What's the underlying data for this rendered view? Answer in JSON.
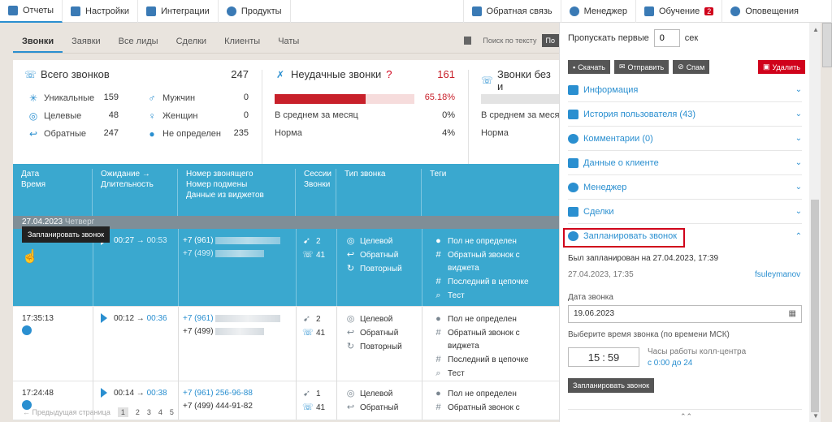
{
  "topbar": {
    "items": [
      {
        "label": "Отчеты",
        "icon": "reports-icon",
        "active": true
      },
      {
        "label": "Настройки",
        "icon": "settings-icon"
      },
      {
        "label": "Интеграции",
        "icon": "integrations-icon"
      },
      {
        "label": "Продукты",
        "icon": "products-icon"
      }
    ],
    "right": [
      {
        "label": "Обратная связь",
        "icon": "feedback-icon"
      },
      {
        "label": "Менеджер",
        "icon": "manager-icon"
      },
      {
        "label": "Обучение",
        "icon": "education-icon",
        "badge": "2"
      },
      {
        "label": "Оповещения",
        "icon": "bell-icon"
      }
    ]
  },
  "subtabs": [
    "Звонки",
    "Заявки",
    "Все лиды",
    "Сделки",
    "Клиенты",
    "Чаты"
  ],
  "search_label": "Поиск по тексту",
  "search_btn": "По",
  "stats": {
    "total": {
      "title": "Всего звонков",
      "value": "247"
    },
    "rows_left": [
      {
        "label": "Уникальные",
        "value": "159",
        "icon": "asterisk-icon"
      },
      {
        "label": "Целевые",
        "value": "48",
        "icon": "target-icon"
      },
      {
        "label": "Обратные",
        "value": "247",
        "icon": "callback-icon"
      }
    ],
    "rows_mid": [
      {
        "label": "Мужчин",
        "value": "0",
        "icon": "male-icon"
      },
      {
        "label": "Женщин",
        "value": "0",
        "icon": "female-icon"
      },
      {
        "label": "Не определен",
        "value": "235",
        "icon": "person-icon"
      }
    ],
    "failed": {
      "title": "Неудачные звонки",
      "value": "161",
      "percent_label": "65.18%",
      "percent": 65.18,
      "avg_label": "В среднем за месяц",
      "avg_value": "0%",
      "norm_label": "Норма",
      "norm_value": "4%"
    },
    "unanswered": {
      "title": "Звонки без и",
      "avg_label": "В среднем за месяц",
      "norm_label": "Норма"
    }
  },
  "table": {
    "headers": [
      [
        "Дата",
        "Время"
      ],
      [
        "Ожидание →",
        "Длительность"
      ],
      [
        "Номер звонящего",
        "Номер подмены",
        "Данные из виджетов"
      ],
      [
        "Сессии",
        "Звонки"
      ],
      [
        "Тип звонка"
      ],
      [
        "Теги"
      ]
    ],
    "date_band": {
      "date": "27.04.2023",
      "dow": "Четверг"
    },
    "tooltip": "Запланировать звонок",
    "rows": [
      {
        "time": "",
        "wait": "00:27",
        "dur": "00:53",
        "caller": "+7 (961)",
        "sub": "+7 (499)",
        "sessions": "2",
        "calls": "41",
        "types": [
          "Целевой",
          "Обратный",
          "Повторный"
        ],
        "tags": [
          "Пол не определен",
          "Обратный звонок с",
          "виджета",
          "Последний в цепочке",
          "Тест"
        ],
        "selected": true
      },
      {
        "time": "17:35:13",
        "wait": "00:12",
        "dur": "00:36",
        "caller": "+7 (961)",
        "sub": "+7 (499)",
        "sessions": "2",
        "calls": "41",
        "types": [
          "Целевой",
          "Обратный",
          "Повторный"
        ],
        "tags": [
          "Пол не определен",
          "Обратный звонок с",
          "виджета",
          "Последний в цепочке",
          "Тест"
        ],
        "selected": false
      },
      {
        "time": "17:24:48",
        "wait": "00:14",
        "dur": "00:38",
        "caller": "+7 (961) 256-96-88",
        "sub": "+7 (499) 444-91-82",
        "sessions": "1",
        "calls": "41",
        "types": [
          "Целевой",
          "Обратный"
        ],
        "tags": [
          "Пол не определен",
          "Обратный звонок с"
        ],
        "selected": false
      }
    ]
  },
  "pager": {
    "prev": "← Предыдущая страница",
    "pages": [
      "1",
      "2",
      "3",
      "4",
      "5"
    ],
    "current": "1"
  },
  "panel": {
    "skip_label": "Пропускать первые",
    "skip_value": "0",
    "skip_unit": "сек",
    "buttons": {
      "download": "Скачать",
      "send": "Отправить",
      "spam": "Спам",
      "delete": "Удалить"
    },
    "sections": [
      {
        "label": "Информация",
        "icon": "info-icon",
        "open": false
      },
      {
        "label": "История пользователя (43)",
        "icon": "history-icon",
        "open": false
      },
      {
        "label": "Комментарии (0)",
        "icon": "comment-icon",
        "open": false
      },
      {
        "label": "Данные о клиенте",
        "icon": "client-card-icon",
        "open": false
      },
      {
        "label": "Менеджер",
        "icon": "manager-icon",
        "open": false
      },
      {
        "label": "Сделки",
        "icon": "deals-icon",
        "open": false
      },
      {
        "label": "Запланировать звонок",
        "icon": "schedule-call-icon",
        "open": true
      }
    ],
    "scheduled_text": "Был запланирован на 27.04.2023, 17:39",
    "scheduled_at": "27.04.2023, 17:35",
    "scheduled_by": "fsuleymanov",
    "date_label": "Дата звонка",
    "date_value": "19.06.2023",
    "time_label": "Выберите время звонка (по времени МСК)",
    "time_h": "15",
    "time_m": "59",
    "hours_label": "Часы работы колл-центра",
    "hours_value": "с 0:00 до 24",
    "schedule_btn": "Запланировать звонок"
  },
  "colors": {
    "accent": "#2a8fd0",
    "header_blue": "#3aa8cf",
    "danger": "#d0021b",
    "band": "#7f8e97"
  }
}
